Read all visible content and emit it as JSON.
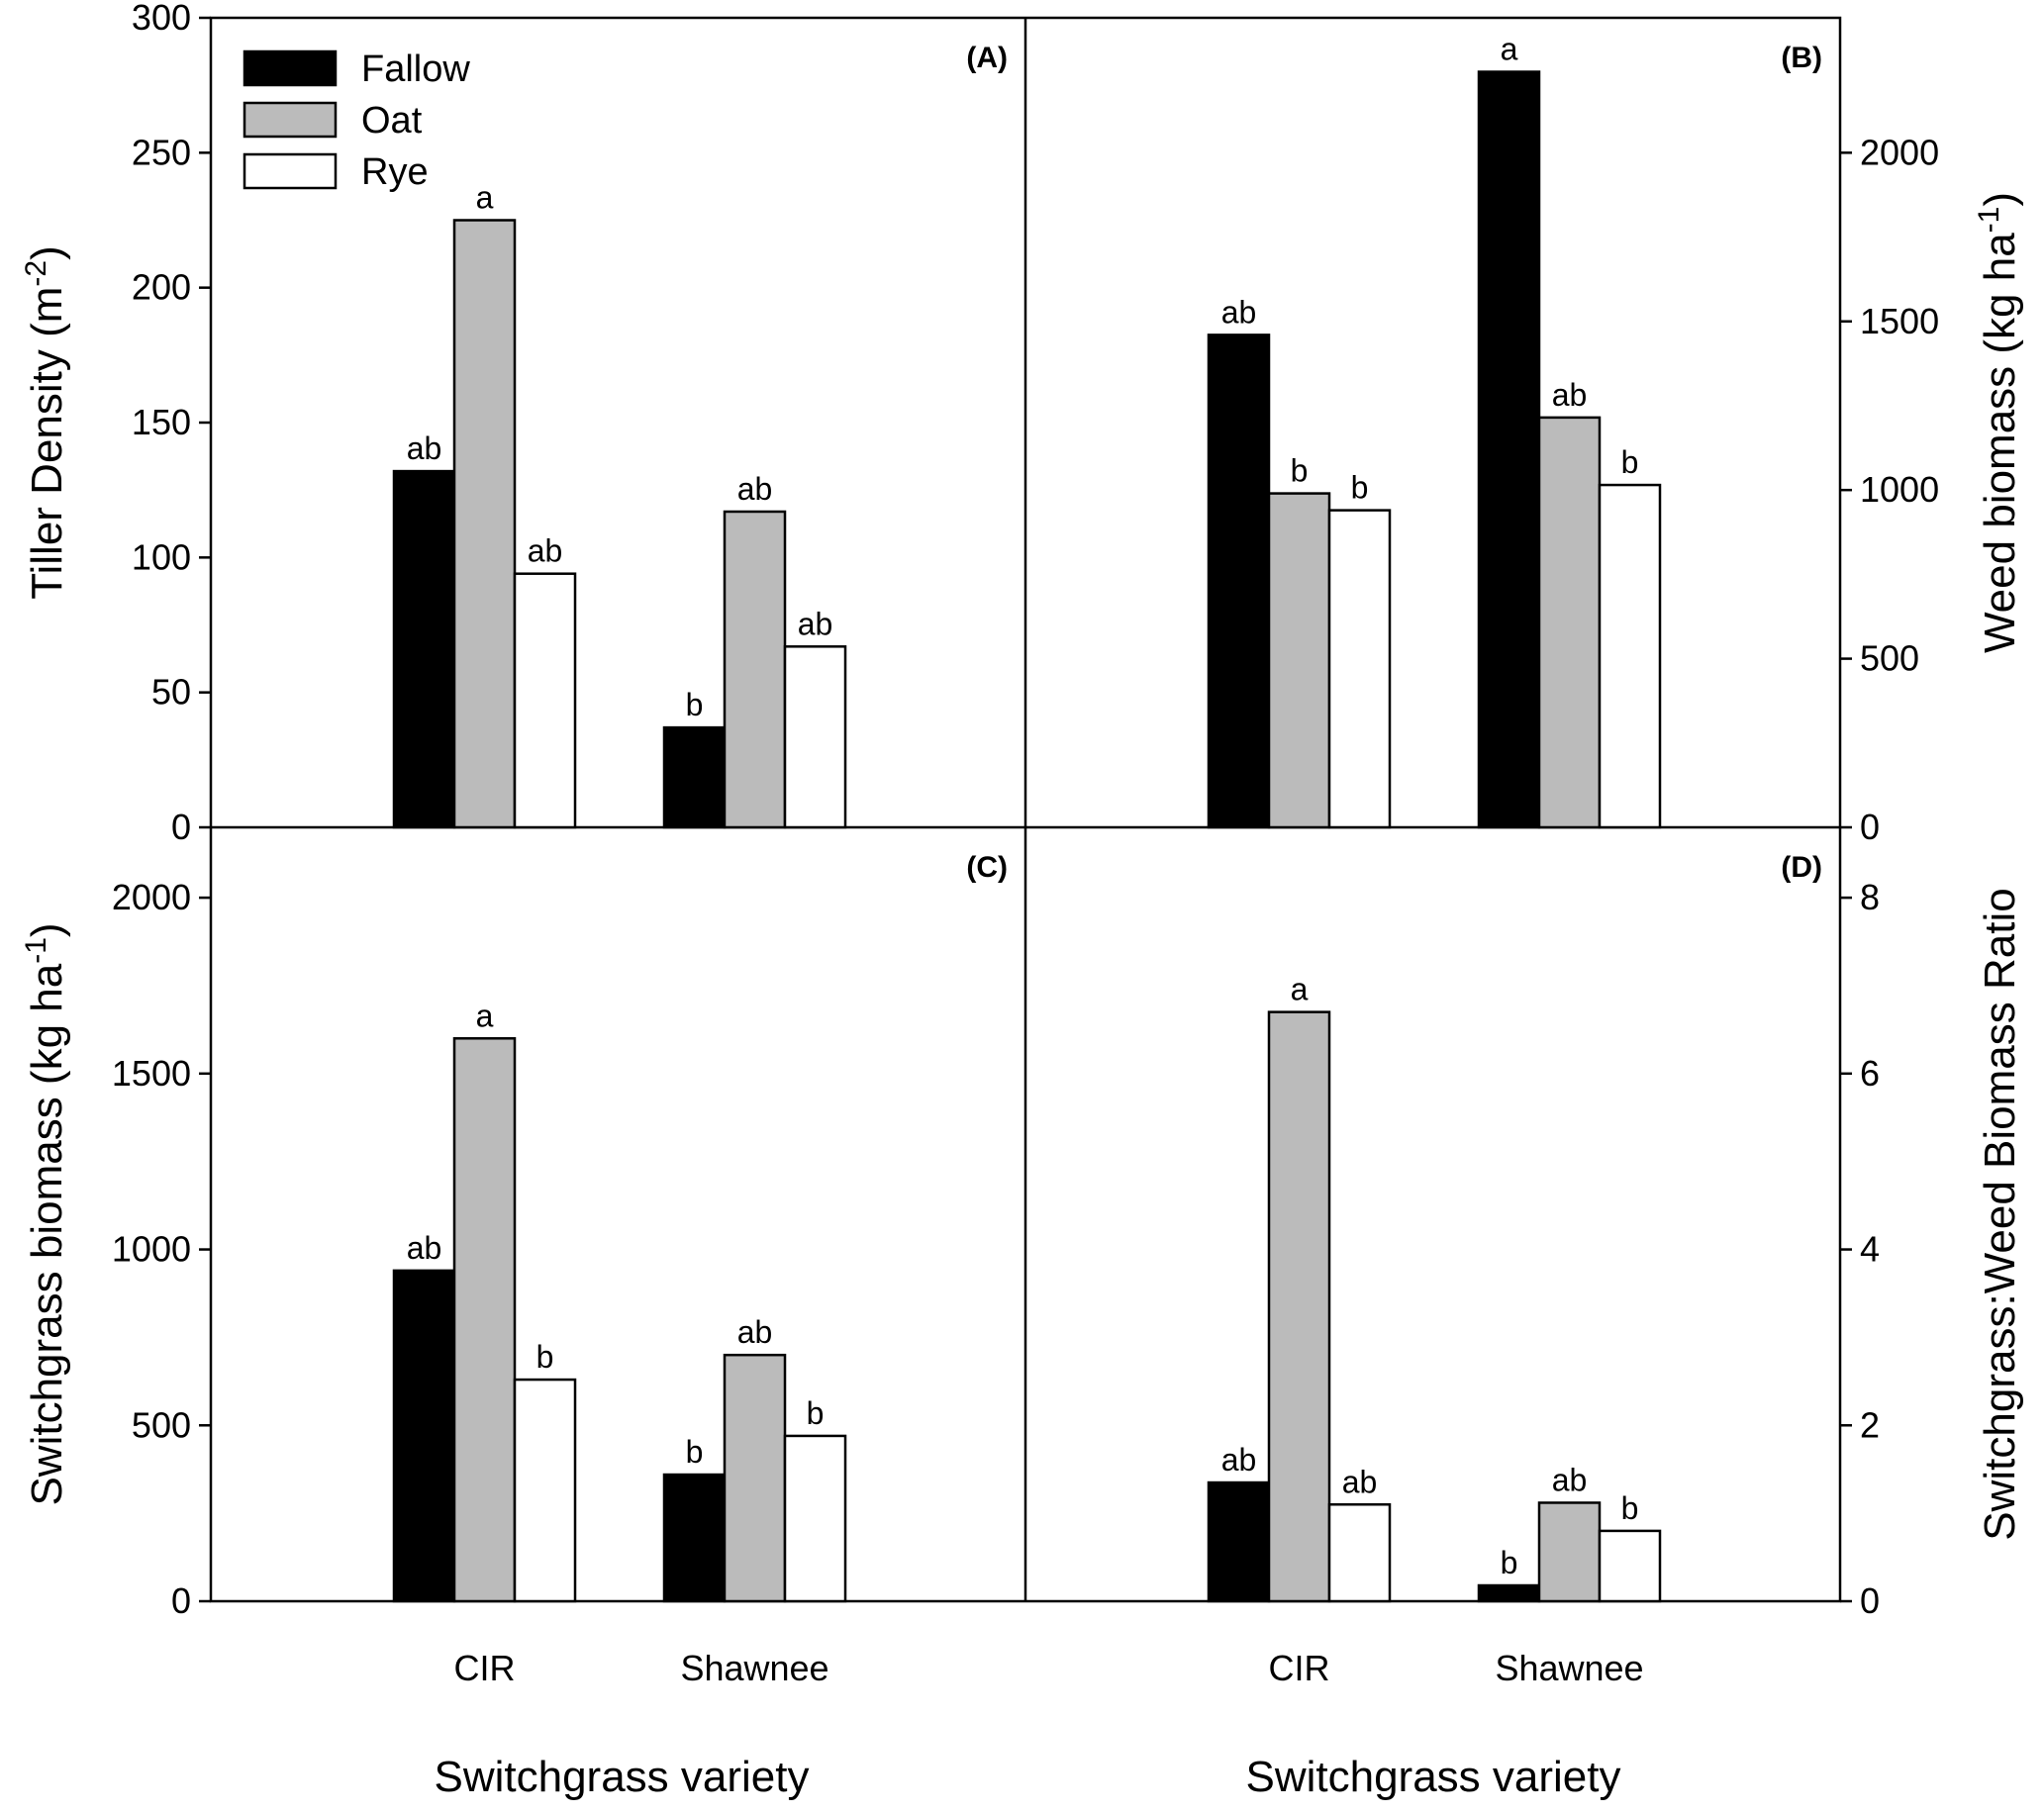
{
  "figure": {
    "xlabel": "Switchgrass variety"
  },
  "colors": {
    "Fallow": "#000000",
    "Oat": "#bbbbbb",
    "Rye": "#ffffff"
  },
  "legend": [
    "Fallow",
    "Oat",
    "Rye"
  ],
  "chart_data": [
    {
      "type": "bar",
      "panel": "(A)",
      "ylabel": "Tiller Density (m",
      "ylabel_sup": "-2",
      "ylabel_end": ")",
      "ylim": [
        0,
        300
      ],
      "yticks": [
        0,
        50,
        100,
        150,
        200,
        250,
        300
      ],
      "categories": [
        "CIR",
        "Shawnee"
      ],
      "series": [
        {
          "name": "Fallow",
          "values": [
            132,
            37
          ],
          "sig": [
            "ab",
            "b"
          ]
        },
        {
          "name": "Oat",
          "values": [
            225,
            117
          ],
          "sig": [
            "a",
            "ab"
          ]
        },
        {
          "name": "Rye",
          "values": [
            94,
            67
          ],
          "sig": [
            "ab",
            "ab"
          ]
        }
      ]
    },
    {
      "type": "bar",
      "panel": "(B)",
      "ylabel": "Weed biomass (kg ha",
      "ylabel_sup": "-1",
      "ylabel_end": ")",
      "ylim": [
        0,
        2400
      ],
      "yticks": [
        0,
        500,
        1000,
        1500,
        2000
      ],
      "categories": [
        "CIR",
        "Shawnee"
      ],
      "series": [
        {
          "name": "Fallow",
          "values": [
            1460,
            2240
          ],
          "sig": [
            "ab",
            "a"
          ]
        },
        {
          "name": "Oat",
          "values": [
            990,
            1215
          ],
          "sig": [
            "b",
            "ab"
          ]
        },
        {
          "name": "Rye",
          "values": [
            940,
            1015
          ],
          "sig": [
            "b",
            "b"
          ]
        }
      ]
    },
    {
      "type": "bar",
      "panel": "(C)",
      "ylabel": "Switchgrass biomass (kg ha",
      "ylabel_sup": "-1",
      "ylabel_end": ")",
      "ylim": [
        0,
        2200
      ],
      "yticks": [
        0,
        500,
        1000,
        1500,
        2000
      ],
      "categories": [
        "CIR",
        "Shawnee"
      ],
      "series": [
        {
          "name": "Fallow",
          "values": [
            940,
            360
          ],
          "sig": [
            "ab",
            "b"
          ]
        },
        {
          "name": "Oat",
          "values": [
            1600,
            700
          ],
          "sig": [
            "a",
            "ab"
          ]
        },
        {
          "name": "Rye",
          "values": [
            630,
            470
          ],
          "sig": [
            "b",
            "b"
          ]
        }
      ]
    },
    {
      "type": "bar",
      "panel": "(D)",
      "ylabel": "Switchgrass:Weed Biomass Ratio",
      "ylabel_sup": "",
      "ylabel_end": "",
      "ylim": [
        0,
        8.8
      ],
      "yticks": [
        0,
        2,
        4,
        6,
        8
      ],
      "categories": [
        "CIR",
        "Shawnee"
      ],
      "series": [
        {
          "name": "Fallow",
          "values": [
            1.35,
            0.18
          ],
          "sig": [
            "ab",
            "b"
          ]
        },
        {
          "name": "Oat",
          "values": [
            6.7,
            1.12
          ],
          "sig": [
            "a",
            "ab"
          ]
        },
        {
          "name": "Rye",
          "values": [
            1.1,
            0.8
          ],
          "sig": [
            "ab",
            "b"
          ]
        }
      ]
    }
  ]
}
